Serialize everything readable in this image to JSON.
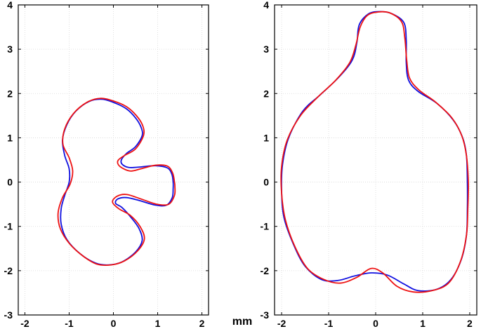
{
  "colors": {
    "reference": "#1010e0",
    "reconstruction": "#ee1111",
    "grid": "#d8d8d8"
  },
  "unit_label": "mm",
  "chart_data": [
    {
      "type": "line",
      "title": "",
      "xlabel": "",
      "ylabel": "",
      "xlim": [
        -2.15,
        2.15
      ],
      "ylim": [
        -3,
        4
      ],
      "xticks": [
        -2,
        -1,
        0,
        1,
        2
      ],
      "yticks": [
        -3,
        -2,
        -1,
        0,
        1,
        2,
        3,
        4
      ],
      "xtick_labels": [
        "-2",
        "-1",
        "0",
        "1",
        "2"
      ],
      "ytick_labels": [
        "-3",
        "-2",
        "-1",
        "0",
        "1",
        "2",
        "3",
        "4"
      ],
      "grid": true,
      "series": [
        {
          "color_key": "reference",
          "closed": true,
          "points": [
            [
              1.35,
              0.0
            ],
            [
              1.32,
              0.18
            ],
            [
              1.22,
              0.32
            ],
            [
              0.95,
              0.37
            ],
            [
              0.6,
              0.34
            ],
            [
              0.35,
              0.33
            ],
            [
              0.2,
              0.4
            ],
            [
              0.18,
              0.5
            ],
            [
              0.3,
              0.65
            ],
            [
              0.5,
              0.8
            ],
            [
              0.65,
              1.05
            ],
            [
              0.62,
              1.25
            ],
            [
              0.5,
              1.45
            ],
            [
              0.3,
              1.65
            ],
            [
              0.05,
              1.78
            ],
            [
              -0.25,
              1.87
            ],
            [
              -0.55,
              1.82
            ],
            [
              -0.85,
              1.6
            ],
            [
              -1.05,
              1.3
            ],
            [
              -1.15,
              0.95
            ],
            [
              -1.1,
              0.6
            ],
            [
              -1.0,
              0.3
            ],
            [
              -1.0,
              0.0
            ],
            [
              -1.1,
              -0.3
            ],
            [
              -1.18,
              -0.6
            ],
            [
              -1.18,
              -0.95
            ],
            [
              -1.05,
              -1.3
            ],
            [
              -0.75,
              -1.62
            ],
            [
              -0.4,
              -1.83
            ],
            [
              -0.1,
              -1.87
            ],
            [
              0.2,
              -1.8
            ],
            [
              0.5,
              -1.58
            ],
            [
              0.65,
              -1.32
            ],
            [
              0.58,
              -1.05
            ],
            [
              0.4,
              -0.8
            ],
            [
              0.2,
              -0.58
            ],
            [
              0.05,
              -0.48
            ],
            [
              0.1,
              -0.38
            ],
            [
              0.3,
              -0.35
            ],
            [
              0.6,
              -0.42
            ],
            [
              0.95,
              -0.52
            ],
            [
              1.2,
              -0.52
            ],
            [
              1.33,
              -0.35
            ],
            [
              1.35,
              -0.15
            ]
          ]
        },
        {
          "color_key": "reconstruction",
          "closed": true,
          "points": [
            [
              1.38,
              0.0
            ],
            [
              1.34,
              0.2
            ],
            [
              1.22,
              0.36
            ],
            [
              0.95,
              0.38
            ],
            [
              0.62,
              0.3
            ],
            [
              0.38,
              0.25
            ],
            [
              0.15,
              0.35
            ],
            [
              0.1,
              0.48
            ],
            [
              0.25,
              0.6
            ],
            [
              0.5,
              0.75
            ],
            [
              0.68,
              1.05
            ],
            [
              0.66,
              1.28
            ],
            [
              0.52,
              1.5
            ],
            [
              0.3,
              1.7
            ],
            [
              0.0,
              1.83
            ],
            [
              -0.3,
              1.89
            ],
            [
              -0.6,
              1.8
            ],
            [
              -0.9,
              1.55
            ],
            [
              -1.1,
              1.2
            ],
            [
              -1.14,
              0.85
            ],
            [
              -1.0,
              0.55
            ],
            [
              -0.92,
              0.25
            ],
            [
              -0.98,
              -0.05
            ],
            [
              -1.15,
              -0.35
            ],
            [
              -1.25,
              -0.7
            ],
            [
              -1.2,
              -1.05
            ],
            [
              -1.0,
              -1.38
            ],
            [
              -0.7,
              -1.66
            ],
            [
              -0.38,
              -1.85
            ],
            [
              -0.05,
              -1.87
            ],
            [
              0.25,
              -1.78
            ],
            [
              0.55,
              -1.55
            ],
            [
              0.7,
              -1.28
            ],
            [
              0.6,
              -1.0
            ],
            [
              0.38,
              -0.75
            ],
            [
              0.12,
              -0.6
            ],
            [
              -0.02,
              -0.45
            ],
            [
              0.08,
              -0.32
            ],
            [
              0.3,
              -0.28
            ],
            [
              0.62,
              -0.38
            ],
            [
              0.98,
              -0.5
            ],
            [
              1.25,
              -0.5
            ],
            [
              1.38,
              -0.3
            ],
            [
              1.39,
              -0.1
            ]
          ]
        }
      ]
    },
    {
      "type": "line",
      "title": "",
      "xlabel": "",
      "ylabel": "",
      "xlim": [
        -2.15,
        2.15
      ],
      "ylim": [
        -3,
        4
      ],
      "xticks": [
        -2,
        -1,
        0,
        1,
        2
      ],
      "yticks": [
        -3,
        -2,
        -1,
        0,
        1,
        2,
        3,
        4
      ],
      "xtick_labels": [
        "-2",
        "-1",
        "0",
        "1",
        "2"
      ],
      "ytick_labels": [
        "-3",
        "-2",
        "-1",
        "0",
        "1",
        "2",
        "3",
        "4"
      ],
      "grid": true,
      "series": [
        {
          "color_key": "reference",
          "closed": true,
          "points": [
            [
              1.95,
              0.0
            ],
            [
              1.93,
              0.6
            ],
            [
              1.85,
              1.0
            ],
            [
              1.65,
              1.4
            ],
            [
              1.3,
              1.78
            ],
            [
              0.9,
              2.05
            ],
            [
              0.7,
              2.3
            ],
            [
              0.65,
              2.7
            ],
            [
              0.65,
              3.2
            ],
            [
              0.6,
              3.6
            ],
            [
              0.35,
              3.8
            ],
            [
              0.1,
              3.85
            ],
            [
              -0.15,
              3.8
            ],
            [
              -0.35,
              3.55
            ],
            [
              -0.4,
              3.15
            ],
            [
              -0.5,
              2.75
            ],
            [
              -0.8,
              2.35
            ],
            [
              -1.2,
              1.95
            ],
            [
              -1.55,
              1.6
            ],
            [
              -1.85,
              1.0
            ],
            [
              -1.98,
              0.4
            ],
            [
              -2.0,
              -0.2
            ],
            [
              -1.95,
              -0.8
            ],
            [
              -1.75,
              -1.4
            ],
            [
              -1.5,
              -1.9
            ],
            [
              -1.15,
              -2.2
            ],
            [
              -0.8,
              -2.22
            ],
            [
              -0.45,
              -2.12
            ],
            [
              -0.1,
              -2.05
            ],
            [
              0.25,
              -2.1
            ],
            [
              0.6,
              -2.3
            ],
            [
              0.9,
              -2.45
            ],
            [
              1.3,
              -2.42
            ],
            [
              1.6,
              -2.2
            ],
            [
              1.82,
              -1.75
            ],
            [
              1.93,
              -1.2
            ],
            [
              1.95,
              -0.6
            ]
          ]
        },
        {
          "color_key": "reconstruction",
          "closed": true,
          "points": [
            [
              1.97,
              0.0
            ],
            [
              1.93,
              0.6
            ],
            [
              1.83,
              1.05
            ],
            [
              1.62,
              1.45
            ],
            [
              1.28,
              1.8
            ],
            [
              0.92,
              2.08
            ],
            [
              0.72,
              2.35
            ],
            [
              0.66,
              2.75
            ],
            [
              0.62,
              3.25
            ],
            [
              0.55,
              3.62
            ],
            [
              0.3,
              3.82
            ],
            [
              0.05,
              3.84
            ],
            [
              -0.18,
              3.76
            ],
            [
              -0.33,
              3.5
            ],
            [
              -0.42,
              3.1
            ],
            [
              -0.55,
              2.7
            ],
            [
              -0.85,
              2.3
            ],
            [
              -1.25,
              1.9
            ],
            [
              -1.6,
              1.5
            ],
            [
              -1.88,
              0.95
            ],
            [
              -2.0,
              0.35
            ],
            [
              -2.0,
              -0.25
            ],
            [
              -1.92,
              -0.85
            ],
            [
              -1.72,
              -1.45
            ],
            [
              -1.45,
              -1.95
            ],
            [
              -1.1,
              -2.2
            ],
            [
              -0.75,
              -2.28
            ],
            [
              -0.4,
              -2.15
            ],
            [
              -0.1,
              -1.95
            ],
            [
              0.15,
              -2.05
            ],
            [
              0.45,
              -2.35
            ],
            [
              0.8,
              -2.48
            ],
            [
              1.2,
              -2.45
            ],
            [
              1.55,
              -2.28
            ],
            [
              1.8,
              -1.8
            ],
            [
              1.93,
              -1.2
            ],
            [
              1.96,
              -0.6
            ]
          ]
        }
      ]
    }
  ]
}
